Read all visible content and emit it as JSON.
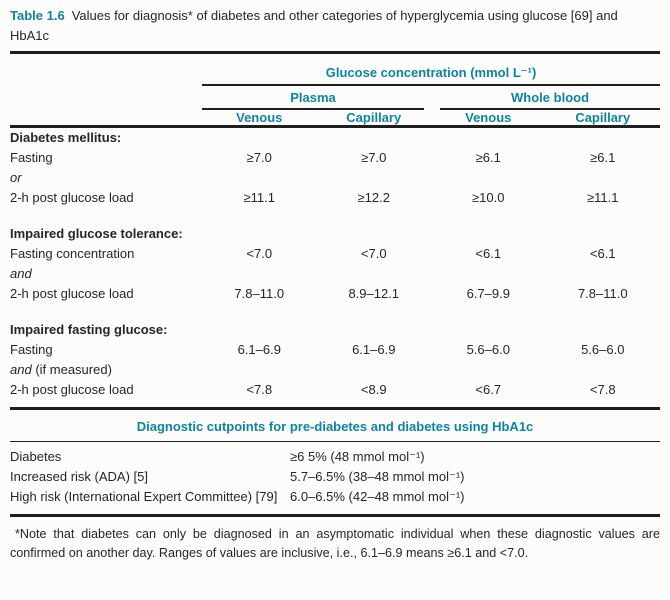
{
  "colors": {
    "accent_teal": "#0e84a4",
    "rule_black": "#1e1e1e",
    "text": "#262626"
  },
  "caption": {
    "label": "Table 1.6",
    "text_line1": "Values for diagnosis* of diabetes and other categories of hyperglycemia using glucose [69] and",
    "text_line2": "HbA1c"
  },
  "glucose": {
    "header": {
      "span_title": "Glucose concentration (mmol L⁻¹)",
      "group1": "Plasma",
      "group2": "Whole blood",
      "cols": [
        "Venous",
        "Capillary",
        "Venous",
        "Capillary"
      ]
    },
    "sections": [
      {
        "heading": "Diabetes mellitus:",
        "rows": [
          {
            "i": "",
            "t": "Fasting",
            "values": [
              "≥7.0",
              "≥7.0",
              "≥6.1",
              "≥6.1"
            ]
          },
          {
            "i": "or",
            "t": "",
            "values": [
              "",
              "",
              "",
              ""
            ]
          },
          {
            "i": "",
            "t": "2-h post glucose load",
            "values": [
              "≥11.1",
              "≥12.2",
              "≥10.0",
              "≥11.1"
            ]
          }
        ]
      },
      {
        "heading": "Impaired glucose tolerance:",
        "rows": [
          {
            "i": "",
            "t": "Fasting concentration",
            "values": [
              "<7.0",
              "<7.0",
              "<6.1",
              "<6.1"
            ]
          },
          {
            "i": "and",
            "t": "",
            "values": [
              "",
              "",
              "",
              ""
            ]
          },
          {
            "i": "",
            "t": "2-h post glucose load",
            "values": [
              "7.8–11.0",
              "8.9–12.1",
              "6.7–9.9",
              "7.8–11.0"
            ]
          }
        ]
      },
      {
        "heading": "Impaired fasting glucose:",
        "rows": [
          {
            "i": "",
            "t": "Fasting",
            "values": [
              "6.1–6.9",
              "6.1–6.9",
              "5.6–6.0",
              "5.6–6.0"
            ]
          },
          {
            "i": "and",
            "t": " (if measured)",
            "values": [
              "",
              "",
              "",
              ""
            ]
          },
          {
            "i": "",
            "t": "2-h post glucose load",
            "values": [
              "<7.8",
              "<8.9",
              "<6.7",
              "<7.8"
            ]
          }
        ]
      }
    ]
  },
  "hba1c": {
    "heading": "Diagnostic cutpoints for pre-diabetes and diabetes using HbA1c",
    "rows": [
      {
        "label": "Diabetes",
        "value": "≥6 5% (48 mmol mol⁻¹)"
      },
      {
        "label": "Increased risk (ADA) [5]",
        "value": "5.7–6.5% (38–48 mmol mol⁻¹)"
      },
      {
        "label": "High risk (International Expert Committee) [79]",
        "value": "6.0–6.5% (42–48 mmol mol⁻¹)"
      }
    ]
  },
  "footnote": {
    "text": "*Note that diabetes can only be diagnosed in an asymptomatic individual when these diagnostic values are confirmed on another day. Ranges of values are inclusive, i.e., 6.1–6.9 means ≥6.1 and <7.0."
  }
}
